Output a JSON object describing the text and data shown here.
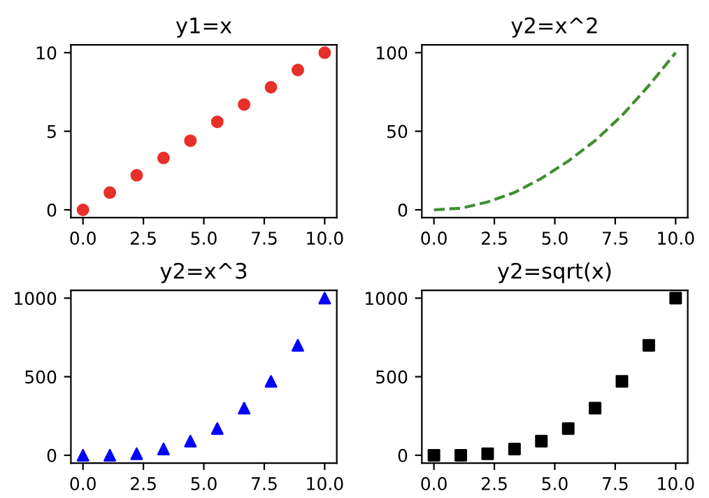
{
  "chart_data": [
    {
      "type": "scatter",
      "title": "y1=x",
      "x": [
        0,
        1.111,
        2.222,
        3.333,
        4.444,
        5.556,
        6.667,
        7.778,
        8.889,
        10
      ],
      "series": [
        {
          "color": "#e8302a",
          "values": [
            0,
            1.1,
            2.2,
            3.3,
            4.4,
            5.6,
            6.7,
            7.8,
            8.9,
            10
          ]
        }
      ],
      "marker": "circle",
      "xlim": [
        -0.5,
        10.5
      ],
      "ylim": [
        -0.5,
        10.5
      ],
      "xticks": [
        {
          "value": 0,
          "label": "0.0"
        },
        {
          "value": 2.5,
          "label": "2.5"
        },
        {
          "value": 5,
          "label": "5.0"
        },
        {
          "value": 7.5,
          "label": "7.5"
        },
        {
          "value": 10,
          "label": "10.0"
        }
      ],
      "yticks": [
        0,
        5,
        10
      ]
    },
    {
      "type": "line",
      "title": "y2=x^2",
      "x": [
        0,
        1.111,
        2.222,
        3.333,
        4.444,
        5.556,
        6.667,
        7.778,
        8.889,
        10
      ],
      "series": [
        {
          "color": "#3f8f2f",
          "values": [
            0,
            1,
            5,
            11,
            20,
            31,
            44,
            60,
            79,
            100
          ]
        }
      ],
      "line_style": "dashed",
      "xlim": [
        -0.5,
        10.5
      ],
      "ylim": [
        -5,
        105
      ],
      "xticks": [
        {
          "value": 0,
          "label": "0.0"
        },
        {
          "value": 2.5,
          "label": "2.5"
        },
        {
          "value": 5,
          "label": "5.0"
        },
        {
          "value": 7.5,
          "label": "7.5"
        },
        {
          "value": 10,
          "label": "10.0"
        }
      ],
      "yticks": [
        0,
        50,
        100
      ]
    },
    {
      "type": "scatter",
      "title": "y2=x^3",
      "x": [
        0,
        1.111,
        2.222,
        3.333,
        4.444,
        5.556,
        6.667,
        7.778,
        8.889,
        10
      ],
      "series": [
        {
          "color": "#0000ff",
          "values": [
            0,
            0,
            10,
            40,
            90,
            170,
            300,
            470,
            700,
            1000
          ]
        }
      ],
      "marker": "triangle",
      "xlim": [
        -0.5,
        10.5
      ],
      "ylim": [
        -50,
        1050
      ],
      "xticks": [
        {
          "value": 0,
          "label": "0.0"
        },
        {
          "value": 2.5,
          "label": "2.5"
        },
        {
          "value": 5,
          "label": "5.0"
        },
        {
          "value": 7.5,
          "label": "7.5"
        },
        {
          "value": 10,
          "label": "10.0"
        }
      ],
      "yticks": [
        0,
        500,
        1000
      ]
    },
    {
      "type": "scatter",
      "title": "y2=sqrt(x)",
      "x": [
        0,
        1.111,
        2.222,
        3.333,
        4.444,
        5.556,
        6.667,
        7.778,
        8.889,
        10
      ],
      "series": [
        {
          "color": "#000000",
          "values": [
            0,
            0,
            10,
            40,
            90,
            170,
            300,
            470,
            700,
            1000
          ]
        }
      ],
      "marker": "square",
      "xlim": [
        -0.5,
        10.5
      ],
      "ylim": [
        -50,
        1050
      ],
      "xticks": [
        {
          "value": 0,
          "label": "0.0"
        },
        {
          "value": 2.5,
          "label": "2.5"
        },
        {
          "value": 5,
          "label": "5.0"
        },
        {
          "value": 7.5,
          "label": "7.5"
        },
        {
          "value": 10,
          "label": "10.0"
        }
      ],
      "yticks": [
        0,
        500,
        1000
      ]
    }
  ]
}
